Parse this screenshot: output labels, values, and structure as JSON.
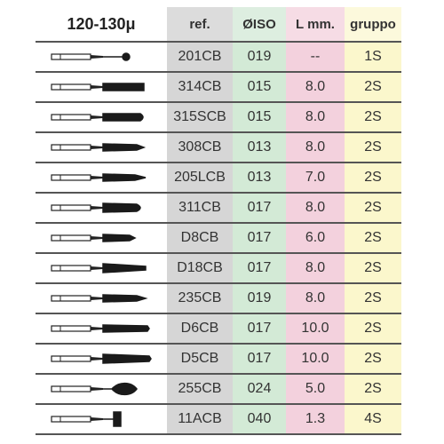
{
  "table": {
    "header": [
      "120-130μ",
      "ref.",
      "ØISO",
      "L mm.",
      "gruppo"
    ],
    "rows": [
      [
        "201CB",
        "019",
        "--",
        "1S"
      ],
      [
        "314CB",
        "015",
        "8.0",
        "2S"
      ],
      [
        "315SCB",
        "015",
        "8.0",
        "2S"
      ],
      [
        "308CB",
        "013",
        "8.0",
        "2S"
      ],
      [
        "205LCB",
        "013",
        "7.0",
        "2S"
      ],
      [
        "311CB",
        "017",
        "8.0",
        "2S"
      ],
      [
        "D8CB",
        "017",
        "6.0",
        "2S"
      ],
      [
        "D18CB",
        "017",
        "8.0",
        "2S"
      ],
      [
        "235CB",
        "019",
        "8.0",
        "2S"
      ],
      [
        "D6CB",
        "017",
        "10.0",
        "2S"
      ],
      [
        "D5CB",
        "017",
        "10.0",
        "2S"
      ],
      [
        "255CB",
        "024",
        "5.0",
        "2S"
      ],
      [
        "11ACB",
        "040",
        "1.3",
        "4S"
      ]
    ]
  }
}
